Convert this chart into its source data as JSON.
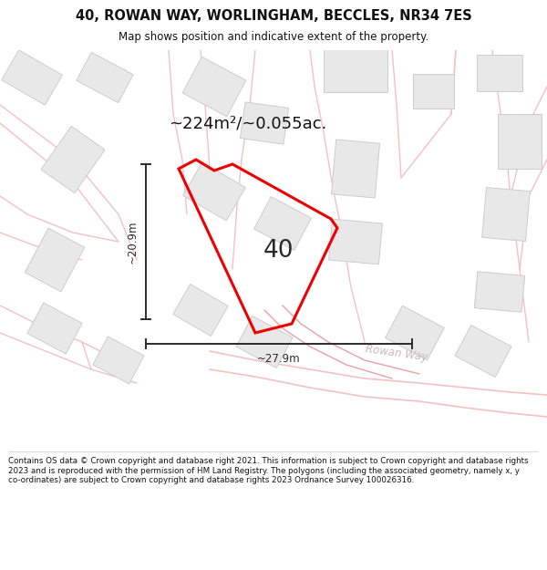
{
  "title_line1": "40, ROWAN WAY, WORLINGHAM, BECCLES, NR34 7ES",
  "title_line2": "Map shows position and indicative extent of the property.",
  "area_text": "~224m²/~0.055ac.",
  "label_40": "40",
  "dim_h": "~20.9m",
  "dim_w": "~27.9m",
  "street_label": "Rowan Way",
  "footer_text": "Contains OS data © Crown copyright and database right 2021. This information is subject to Crown copyright and database rights 2023 and is reproduced with the permission of HM Land Registry. The polygons (including the associated geometry, namely x, y co-ordinates) are subject to Crown copyright and database rights 2023 Ordnance Survey 100026316.",
  "bg_color": "#ffffff",
  "map_bg": "#ffffff",
  "road_color": "#f5c0c0",
  "road_color2": "#e8a0a0",
  "building_color": "#e8e8e8",
  "building_edge": "#cccccc",
  "plot_color": "#ee0000",
  "dim_color": "#2a2a2a",
  "title_color": "#111111",
  "footer_color": "#111111",
  "area_text_color": "#111111",
  "street_text_color": "#c8b8b8"
}
